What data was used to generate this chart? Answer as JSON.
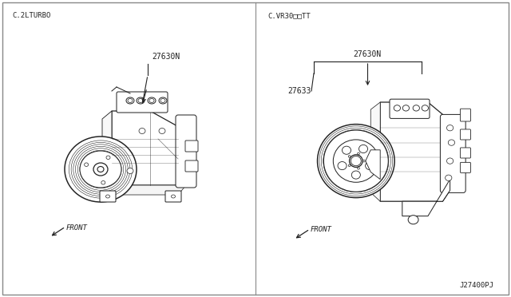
{
  "left_label": "C.2LTURBO",
  "right_label": "C.VR30□□TT",
  "left_part_label": "27630N",
  "right_part_label1": "27630N",
  "right_part_label2": "27633",
  "bottom_code": "J27400PJ",
  "front_label": "FRONT",
  "line_color": "#222222",
  "text_color": "#222222",
  "bg_color": "#ffffff",
  "figsize": [
    6.4,
    3.72
  ],
  "dpi": 100
}
